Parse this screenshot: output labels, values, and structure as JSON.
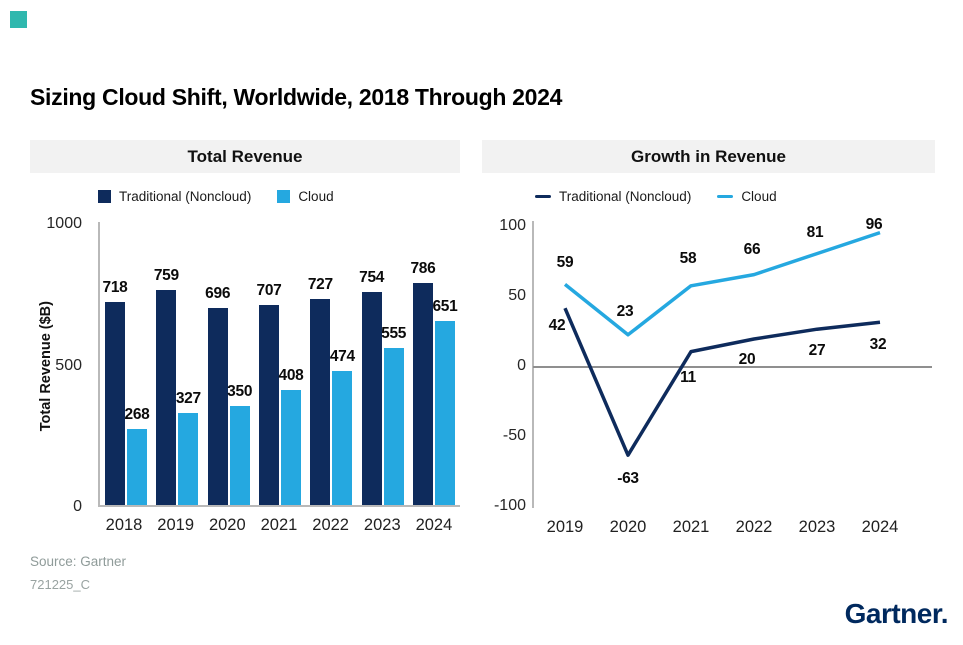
{
  "page": {
    "title": "Sizing Cloud Shift, Worldwide, 2018 Through 2024",
    "source_line1": "Source: Gartner",
    "source_line2": "721225_C",
    "logo_text": "Gartner",
    "logo_mark": "."
  },
  "colors": {
    "traditional": "#0E2B5C",
    "cloud": "#25A8E0",
    "header_bg": "#F2F2F2",
    "axis_gray": "#B9B9B9",
    "zero_line_gray": "#8F8F8F",
    "logo_navy": "#00295E",
    "accent_teal": "#2FB8AE"
  },
  "chart_data": [
    {
      "type": "bar",
      "panel_title": "Total Revenue",
      "legend": [
        "Traditional (Noncloud)",
        "Cloud"
      ],
      "categories": [
        "2018",
        "2019",
        "2020",
        "2021",
        "2022",
        "2023",
        "2024"
      ],
      "series": [
        {
          "name": "Traditional (Noncloud)",
          "color": "#0E2B5C",
          "values": [
            718,
            759,
            696,
            707,
            727,
            754,
            786
          ]
        },
        {
          "name": "Cloud",
          "color": "#25A8E0",
          "values": [
            268,
            327,
            350,
            408,
            474,
            555,
            651
          ]
        }
      ],
      "xlabel": "",
      "ylabel": "Total Revenue ($B)",
      "yticks": [
        0,
        500,
        1000
      ],
      "ylim": [
        0,
        1000
      ],
      "grid": false,
      "legend_position": "top"
    },
    {
      "type": "line",
      "panel_title": "Growth in Revenue",
      "legend": [
        "Traditional (Noncloud)",
        "Cloud"
      ],
      "categories": [
        "2019",
        "2020",
        "2021",
        "2022",
        "2023",
        "2024"
      ],
      "series": [
        {
          "name": "Traditional (Noncloud)",
          "color": "#0E2B5C",
          "values": [
            42,
            -63,
            11,
            20,
            27,
            32
          ]
        },
        {
          "name": "Cloud",
          "color": "#25A8E0",
          "values": [
            59,
            23,
            58,
            66,
            81,
            96
          ]
        }
      ],
      "xlabel": "",
      "ylabel": "",
      "yticks": [
        -100,
        -50,
        0,
        50,
        100
      ],
      "ylim": [
        -100,
        100
      ],
      "grid": false,
      "zero_line": true,
      "legend_position": "top"
    }
  ]
}
